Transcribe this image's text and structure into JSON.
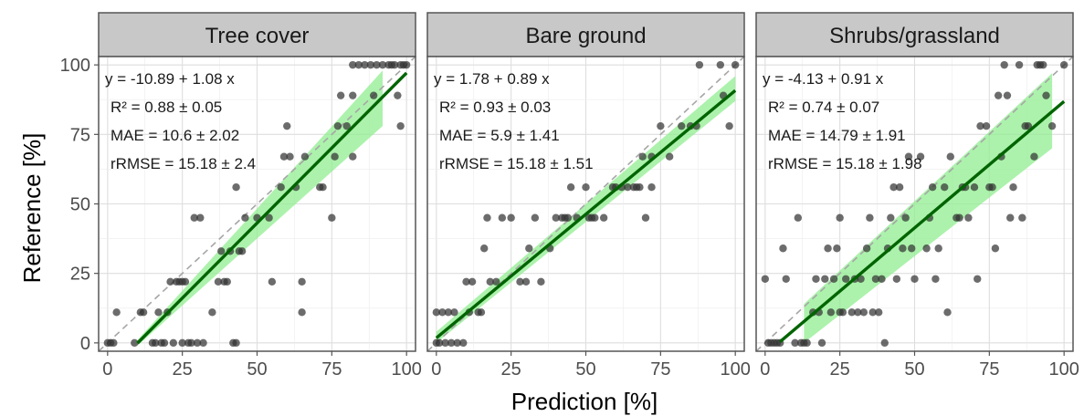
{
  "figure": {
    "xlabel": "Prediction [%]",
    "ylabel": "Reference [%]"
  },
  "chart_data": [
    {
      "type": "scatter",
      "title": "Tree cover",
      "xlabel": "Prediction [%]",
      "ylabel": "Reference [%]",
      "xlim": [
        -3,
        103
      ],
      "ylim": [
        -3,
        103
      ],
      "xticks": [
        "0",
        "25",
        "50",
        "75",
        "100"
      ],
      "yticks": [
        "0",
        "25",
        "50",
        "75",
        "100"
      ],
      "grid": true,
      "stats": [
        "y = -10.89 + 1.08 x",
        "R² = 0.88 ± 0.05",
        "MAE = 10.6 ± 2.02",
        "rRMSE = 15.18 ± 2.4"
      ],
      "fit": {
        "x": [
          10,
          100
        ],
        "intercept": -10.89,
        "slope": 1.08,
        "color": "#006400"
      },
      "band": {
        "x": [
          10,
          92
        ],
        "lower": [
          -1,
          78
        ],
        "upper": [
          1,
          98
        ],
        "color": "#90ee90"
      },
      "identity_line": true,
      "points": [
        [
          0,
          0
        ],
        [
          1,
          0
        ],
        [
          2,
          0
        ],
        [
          3,
          11
        ],
        [
          9,
          0
        ],
        [
          11,
          11
        ],
        [
          12,
          11
        ],
        [
          15,
          0
        ],
        [
          16,
          0
        ],
        [
          17,
          11
        ],
        [
          18,
          0
        ],
        [
          19,
          0
        ],
        [
          20,
          11
        ],
        [
          21,
          22
        ],
        [
          22,
          0
        ],
        [
          23,
          22
        ],
        [
          24,
          22
        ],
        [
          25,
          22
        ],
        [
          25,
          0
        ],
        [
          26,
          22
        ],
        [
          27,
          0
        ],
        [
          28,
          0
        ],
        [
          29,
          45
        ],
        [
          30,
          0
        ],
        [
          31,
          45
        ],
        [
          32,
          0
        ],
        [
          35,
          11
        ],
        [
          37,
          22
        ],
        [
          38,
          33
        ],
        [
          39,
          22
        ],
        [
          40,
          22
        ],
        [
          41,
          33
        ],
        [
          42,
          0
        ],
        [
          43,
          56
        ],
        [
          43,
          0
        ],
        [
          44,
          33
        ],
        [
          45,
          33
        ],
        [
          46,
          45
        ],
        [
          50,
          45
        ],
        [
          54,
          45
        ],
        [
          55,
          22
        ],
        [
          58,
          56
        ],
        [
          59,
          67
        ],
        [
          60,
          78
        ],
        [
          61,
          67
        ],
        [
          63,
          56
        ],
        [
          65,
          22
        ],
        [
          65,
          11
        ],
        [
          66,
          67
        ],
        [
          71,
          56
        ],
        [
          72,
          56
        ],
        [
          75,
          45
        ],
        [
          76,
          67
        ],
        [
          77,
          78
        ],
        [
          78,
          89
        ],
        [
          80,
          78
        ],
        [
          82,
          67
        ],
        [
          82,
          89
        ],
        [
          82,
          100
        ],
        [
          84,
          100
        ],
        [
          86,
          100
        ],
        [
          88,
          100
        ],
        [
          89,
          89
        ],
        [
          90,
          100
        ],
        [
          92,
          100
        ],
        [
          94,
          100
        ],
        [
          95,
          100
        ],
        [
          96,
          100
        ],
        [
          97,
          89
        ],
        [
          98,
          100
        ],
        [
          98,
          78
        ],
        [
          99,
          100
        ],
        [
          100,
          100
        ]
      ]
    },
    {
      "type": "scatter",
      "title": "Bare ground",
      "xlabel": "Prediction [%]",
      "ylabel": "Reference [%]",
      "xlim": [
        -3,
        103
      ],
      "ylim": [
        -3,
        103
      ],
      "xticks": [
        "0",
        "25",
        "50",
        "75",
        "100"
      ],
      "yticks": [
        "0",
        "25",
        "50",
        "75",
        "100"
      ],
      "grid": true,
      "stats": [
        "y = 1.78 + 0.89 x",
        "R² = 0.93 ± 0.03",
        "MAE = 5.9 ± 1.41",
        "rRMSE = 15.18 ± 1.51"
      ],
      "fit": {
        "x": [
          0,
          100
        ],
        "intercept": 1.78,
        "slope": 0.89,
        "color": "#006400"
      },
      "band": {
        "x": [
          0,
          100
        ],
        "lower": [
          0,
          87
        ],
        "upper": [
          4,
          96
        ],
        "color": "#90ee90"
      },
      "identity_line": true,
      "points": [
        [
          0,
          0
        ],
        [
          0,
          11
        ],
        [
          1,
          0
        ],
        [
          2,
          11
        ],
        [
          3,
          0
        ],
        [
          4,
          11
        ],
        [
          5,
          0
        ],
        [
          6,
          11
        ],
        [
          7,
          0
        ],
        [
          9,
          0
        ],
        [
          10,
          22
        ],
        [
          11,
          11
        ],
        [
          12,
          22
        ],
        [
          14,
          11
        ],
        [
          15,
          11
        ],
        [
          16,
          34
        ],
        [
          17,
          45
        ],
        [
          18,
          22
        ],
        [
          20,
          22
        ],
        [
          22,
          45
        ],
        [
          25,
          45
        ],
        [
          28,
          22
        ],
        [
          30,
          22
        ],
        [
          31,
          34
        ],
        [
          33,
          45
        ],
        [
          35,
          22
        ],
        [
          38,
          34
        ],
        [
          40,
          45
        ],
        [
          42,
          45
        ],
        [
          43,
          45
        ],
        [
          44,
          45
        ],
        [
          45,
          56
        ],
        [
          47,
          45
        ],
        [
          50,
          56
        ],
        [
          51,
          45
        ],
        [
          52,
          45
        ],
        [
          53,
          45
        ],
        [
          56,
          45
        ],
        [
          59,
          56
        ],
        [
          60,
          56
        ],
        [
          62,
          56
        ],
        [
          64,
          56
        ],
        [
          66,
          56
        ],
        [
          67,
          56
        ],
        [
          68,
          56
        ],
        [
          69,
          67
        ],
        [
          70,
          45
        ],
        [
          72,
          56
        ],
        [
          72,
          67
        ],
        [
          75,
          78
        ],
        [
          78,
          67
        ],
        [
          82,
          78
        ],
        [
          85,
          78
        ],
        [
          87,
          78
        ],
        [
          88,
          100
        ],
        [
          95,
          100
        ],
        [
          96,
          89
        ],
        [
          98,
          78
        ],
        [
          100,
          100
        ]
      ]
    },
    {
      "type": "scatter",
      "title": "Shrubs/grassland",
      "xlabel": "Prediction [%]",
      "ylabel": "Reference [%]",
      "xlim": [
        -3,
        103
      ],
      "ylim": [
        -3,
        103
      ],
      "xticks": [
        "0",
        "25",
        "50",
        "75",
        "100"
      ],
      "yticks": [
        "0",
        "25",
        "50",
        "75",
        "100"
      ],
      "grid": true,
      "stats": [
        "y = -4.13 + 0.91 x",
        "R² = 0.74 ± 0.07",
        "MAE = 14.79 ± 1.91",
        "rRMSE = 15.18 ± 1.98"
      ],
      "fit": {
        "x": [
          5,
          100
        ],
        "intercept": -4.13,
        "slope": 0.91,
        "color": "#006400"
      },
      "band": {
        "x": [
          13,
          96
        ],
        "lower": [
          0,
          70
        ],
        "upper": [
          14,
          97
        ],
        "color": "#90ee90"
      },
      "identity_line": true,
      "points": [
        [
          0,
          23
        ],
        [
          1,
          0
        ],
        [
          2,
          0
        ],
        [
          3,
          0
        ],
        [
          4,
          0
        ],
        [
          5,
          0
        ],
        [
          6,
          34
        ],
        [
          7,
          23
        ],
        [
          10,
          0
        ],
        [
          11,
          45
        ],
        [
          12,
          0
        ],
        [
          13,
          0
        ],
        [
          14,
          0
        ],
        [
          16,
          11
        ],
        [
          17,
          23
        ],
        [
          18,
          11
        ],
        [
          19,
          0
        ],
        [
          20,
          23
        ],
        [
          21,
          34
        ],
        [
          22,
          11
        ],
        [
          23,
          23
        ],
        [
          24,
          34
        ],
        [
          25,
          45
        ],
        [
          25,
          11
        ],
        [
          26,
          11
        ],
        [
          27,
          23
        ],
        [
          29,
          11
        ],
        [
          30,
          23
        ],
        [
          31,
          11
        ],
        [
          32,
          23
        ],
        [
          33,
          11
        ],
        [
          34,
          34
        ],
        [
          35,
          45
        ],
        [
          36,
          11
        ],
        [
          37,
          23
        ],
        [
          38,
          11
        ],
        [
          39,
          23
        ],
        [
          40,
          0
        ],
        [
          41,
          34
        ],
        [
          42,
          45
        ],
        [
          43,
          56
        ],
        [
          44,
          23
        ],
        [
          45,
          56
        ],
        [
          46,
          34
        ],
        [
          47,
          45
        ],
        [
          48,
          67
        ],
        [
          49,
          34
        ],
        [
          50,
          23
        ],
        [
          52,
          67
        ],
        [
          54,
          34
        ],
        [
          55,
          45
        ],
        [
          56,
          56
        ],
        [
          57,
          23
        ],
        [
          58,
          34
        ],
        [
          60,
          56
        ],
        [
          61,
          11
        ],
        [
          62,
          67
        ],
        [
          64,
          45
        ],
        [
          65,
          45
        ],
        [
          66,
          56
        ],
        [
          67,
          56
        ],
        [
          68,
          45
        ],
        [
          70,
          56
        ],
        [
          71,
          23
        ],
        [
          72,
          78
        ],
        [
          74,
          78
        ],
        [
          75,
          56
        ],
        [
          76,
          56
        ],
        [
          77,
          34
        ],
        [
          78,
          89
        ],
        [
          79,
          67
        ],
        [
          80,
          100
        ],
        [
          81,
          89
        ],
        [
          82,
          45
        ],
        [
          83,
          56
        ],
        [
          85,
          100
        ],
        [
          86,
          45
        ],
        [
          87,
          78
        ],
        [
          88,
          78
        ],
        [
          90,
          67
        ],
        [
          91,
          100
        ],
        [
          92,
          100
        ],
        [
          93,
          100
        ],
        [
          94,
          89
        ],
        [
          96,
          78
        ],
        [
          100,
          100
        ]
      ]
    }
  ]
}
